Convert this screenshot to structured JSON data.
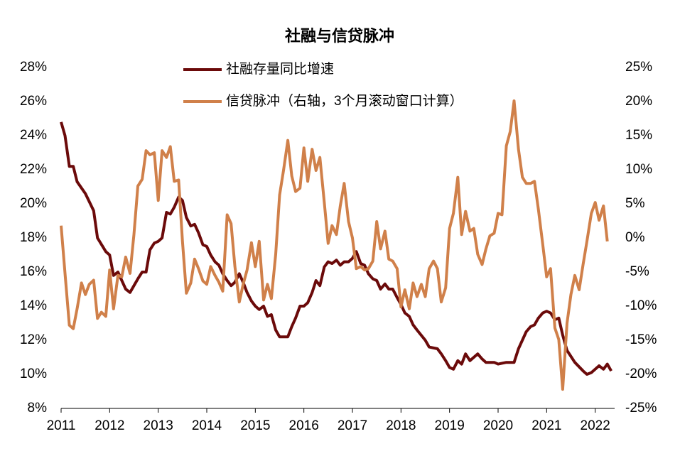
{
  "chart_data": {
    "type": "line",
    "title": "社融与信贷脉冲",
    "xlim": [
      2011,
      2022.4
    ],
    "xticks": [
      2011,
      2012,
      2013,
      2014,
      2015,
      2016,
      2017,
      2018,
      2019,
      2020,
      2021,
      2022
    ],
    "ylim": [
      8,
      28
    ],
    "yticks": [
      {
        "value": 8,
        "label": "8%"
      },
      {
        "value": 10,
        "label": "10%"
      },
      {
        "value": 12,
        "label": "12%"
      },
      {
        "value": 14,
        "label": "14%"
      },
      {
        "value": 16,
        "label": "16%"
      },
      {
        "value": 18,
        "label": "18%"
      },
      {
        "value": 20,
        "label": "20%"
      },
      {
        "value": 22,
        "label": "22%"
      },
      {
        "value": 24,
        "label": "24%"
      },
      {
        "value": 26,
        "label": "26%"
      },
      {
        "value": 28,
        "label": "28%"
      }
    ],
    "y2lim": [
      -25,
      25
    ],
    "y2ticks": [
      {
        "value": -25,
        "label": "-25%"
      },
      {
        "value": -20,
        "label": "-20%"
      },
      {
        "value": -15,
        "label": "-15%"
      },
      {
        "value": -10,
        "label": "-10%"
      },
      {
        "value": -5,
        "label": "-5%"
      },
      {
        "value": 0,
        "label": "0%"
      },
      {
        "value": 5,
        "label": "5%"
      },
      {
        "value": 10,
        "label": "10%"
      },
      {
        "value": 15,
        "label": "15%"
      },
      {
        "value": 20,
        "label": "20%"
      },
      {
        "value": 25,
        "label": "25%"
      }
    ],
    "series": [
      {
        "name": "社融存量同比增速",
        "color": "#6b0a0a",
        "x": [
          2011.0,
          2011.08,
          2011.17,
          2011.25,
          2011.33,
          2011.5,
          2011.67,
          2011.75,
          2011.92,
          2012.0,
          2012.08,
          2012.17,
          2012.33,
          2012.42,
          2012.58,
          2012.67,
          2012.75,
          2012.83,
          2012.92,
          2013.0,
          2013.08,
          2013.17,
          2013.25,
          2013.33,
          2013.42,
          2013.5,
          2013.58,
          2013.67,
          2013.75,
          2013.83,
          2013.92,
          2014.0,
          2014.08,
          2014.17,
          2014.25,
          2014.33,
          2014.42,
          2014.5,
          2014.58,
          2014.67,
          2014.75,
          2014.83,
          2014.92,
          2015.0,
          2015.08,
          2015.17,
          2015.25,
          2015.33,
          2015.42,
          2015.5,
          2015.58,
          2015.67,
          2015.75,
          2015.83,
          2015.92,
          2016.0,
          2016.08,
          2016.17,
          2016.25,
          2016.33,
          2016.42,
          2016.5,
          2016.58,
          2016.67,
          2016.75,
          2016.83,
          2016.92,
          2017.0,
          2017.08,
          2017.17,
          2017.25,
          2017.33,
          2017.42,
          2017.5,
          2017.58,
          2017.67,
          2017.75,
          2017.83,
          2017.92,
          2018.0,
          2018.08,
          2018.17,
          2018.25,
          2018.33,
          2018.5,
          2018.58,
          2018.75,
          2018.83,
          2018.92,
          2019.0,
          2019.08,
          2019.17,
          2019.25,
          2019.33,
          2019.42,
          2019.58,
          2019.67,
          2019.75,
          2019.92,
          2020.0,
          2020.17,
          2020.33,
          2020.42,
          2020.58,
          2020.67,
          2020.75,
          2020.83,
          2020.92,
          2021.0,
          2021.08,
          2021.17,
          2021.25,
          2021.33,
          2021.42,
          2021.58,
          2021.75,
          2021.83,
          2021.92,
          2022.0,
          2022.08,
          2022.17,
          2022.25,
          2022.33
        ],
        "values": [
          24.8,
          24.0,
          22.2,
          22.2,
          21.3,
          20.6,
          19.6,
          18.0,
          17.2,
          17.0,
          15.8,
          16.0,
          15.0,
          14.8,
          15.6,
          16.0,
          16.0,
          17.3,
          17.7,
          17.8,
          18.0,
          19.5,
          19.4,
          19.8,
          20.4,
          20.2,
          19.2,
          18.7,
          18.8,
          18.3,
          17.6,
          17.5,
          17.0,
          16.6,
          16.4,
          15.9,
          15.5,
          15.2,
          15.4,
          15.9,
          15.4,
          14.8,
          14.3,
          14.0,
          13.8,
          14.0,
          13.4,
          13.5,
          12.6,
          12.2,
          12.2,
          12.2,
          12.8,
          13.3,
          14.0,
          14.0,
          14.2,
          14.8,
          15.5,
          15.2,
          16.3,
          16.6,
          16.5,
          16.7,
          16.4,
          16.6,
          16.6,
          16.8,
          17.2,
          16.5,
          16.4,
          15.9,
          15.6,
          15.5,
          15.0,
          15.3,
          15.0,
          15.0,
          14.5,
          14.1,
          13.6,
          13.4,
          12.9,
          12.6,
          12.0,
          11.6,
          11.5,
          11.2,
          10.8,
          10.4,
          10.3,
          10.8,
          10.6,
          11.2,
          10.8,
          11.2,
          10.9,
          10.7,
          10.7,
          10.6,
          10.7,
          10.7,
          11.5,
          12.5,
          12.8,
          12.9,
          13.3,
          13.6,
          13.7,
          13.6,
          13.2,
          13.3,
          12.3,
          11.4,
          10.7,
          10.2,
          10.0,
          10.1,
          10.3,
          10.5,
          10.3,
          10.6,
          10.2
        ]
      },
      {
        "name": "信贷脉冲（右轴，3个月滚动窗口计算）",
        "color": "#d0804a",
        "axis": "y2",
        "x": [
          2011.0,
          2011.08,
          2011.17,
          2011.25,
          2011.33,
          2011.42,
          2011.5,
          2011.58,
          2011.67,
          2011.75,
          2011.83,
          2011.92,
          2012.0,
          2012.08,
          2012.17,
          2012.25,
          2012.33,
          2012.42,
          2012.5,
          2012.58,
          2012.67,
          2012.75,
          2012.83,
          2012.92,
          2013.0,
          2013.08,
          2013.17,
          2013.25,
          2013.33,
          2013.42,
          2013.5,
          2013.58,
          2013.67,
          2013.75,
          2013.83,
          2013.92,
          2014.0,
          2014.08,
          2014.17,
          2014.25,
          2014.33,
          2014.42,
          2014.5,
          2014.58,
          2014.67,
          2014.75,
          2014.83,
          2014.92,
          2015.0,
          2015.08,
          2015.17,
          2015.25,
          2015.33,
          2015.42,
          2015.5,
          2015.58,
          2015.67,
          2015.75,
          2015.83,
          2015.92,
          2016.0,
          2016.08,
          2016.17,
          2016.25,
          2016.33,
          2016.42,
          2016.5,
          2016.58,
          2016.67,
          2016.75,
          2016.83,
          2016.92,
          2017.0,
          2017.08,
          2017.17,
          2017.25,
          2017.33,
          2017.42,
          2017.5,
          2017.58,
          2017.67,
          2017.75,
          2017.83,
          2017.92,
          2018.0,
          2018.08,
          2018.17,
          2018.25,
          2018.33,
          2018.42,
          2018.5,
          2018.58,
          2018.67,
          2018.75,
          2018.83,
          2018.92,
          2019.0,
          2019.08,
          2019.17,
          2019.25,
          2019.33,
          2019.42,
          2019.5,
          2019.58,
          2019.67,
          2019.75,
          2019.83,
          2019.92,
          2020.0,
          2020.08,
          2020.17,
          2020.25,
          2020.33,
          2020.42,
          2020.5,
          2020.58,
          2020.67,
          2020.75,
          2020.83,
          2020.92,
          2021.0,
          2021.08,
          2021.17,
          2021.25,
          2021.33,
          2021.42,
          2021.5,
          2021.58,
          2021.67,
          2021.75,
          2021.83,
          2021.92,
          2022.0,
          2022.08,
          2022.17,
          2022.25
        ],
        "values": [
          1.8,
          -5.2,
          -12.8,
          -13.3,
          -10.4,
          -6.6,
          -8.3,
          -6.8,
          -6.2,
          -11.8,
          -10.9,
          -11.5,
          -4.7,
          -10.4,
          -5.5,
          -5.7,
          -2.8,
          -5.2,
          0.5,
          7.6,
          8.6,
          12.8,
          12.2,
          12.5,
          5.5,
          12.8,
          11.8,
          13.4,
          8.3,
          8.5,
          -0.5,
          -8.1,
          -6.6,
          -3.1,
          -4.5,
          -6.3,
          -6.8,
          -4.2,
          -5.5,
          -6.5,
          -7.8,
          3.4,
          2.1,
          -4.2,
          -9.4,
          -6.8,
          -4.7,
          -0.7,
          -4.2,
          -0.5,
          -9.1,
          -6.8,
          -8.9,
          -2.4,
          6.3,
          9.9,
          14.3,
          9.1,
          6.8,
          7.3,
          13.2,
          8.3,
          13.0,
          9.9,
          11.8,
          5.2,
          -0.8,
          1.8,
          0.5,
          4.7,
          8.0,
          2.4,
          0,
          -4.5,
          -4.2,
          -4.7,
          -4.5,
          -3.4,
          2.4,
          -1.6,
          1.0,
          -3.1,
          -3.4,
          -4.5,
          -10.1,
          -7.6,
          -10.4,
          -6.6,
          -8.6,
          -6.8,
          -8.6,
          -4.5,
          -3.4,
          -4.5,
          -9.4,
          -7.3,
          1.4,
          3.6,
          8.9,
          0.5,
          3.9,
          1.0,
          1.4,
          -2.4,
          -3.9,
          -1.6,
          0.3,
          0.7,
          3.6,
          3.4,
          13.5,
          15.6,
          20.1,
          13.0,
          8.9,
          8.0,
          8.0,
          8.3,
          4.2,
          -1.0,
          -5.7,
          -4.5,
          -13.2,
          -14.9,
          -22.2,
          -12.5,
          -8.3,
          -5.5,
          -7.6,
          -3.9,
          -0.5,
          3.6,
          5.2,
          2.6,
          4.7,
          -0.5
        ]
      }
    ]
  }
}
